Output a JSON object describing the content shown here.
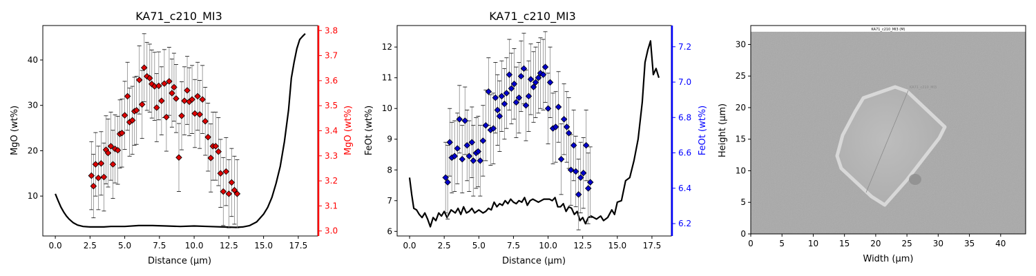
{
  "chart_data": [
    {
      "type": "line+scatter",
      "title": "KA71_c210_MI3",
      "xlabel": "Distance (µm)",
      "ylabel": "MgO (wt%)",
      "ylabel_right": "MgO (wt%)",
      "xlim": [
        -0.9,
        18.9
      ],
      "ylim": [
        1.2,
        47.6
      ],
      "ylim_right": [
        2.98,
        3.82
      ],
      "xticks": [
        "0.0",
        "2.5",
        "5.0",
        "7.5",
        "10.0",
        "12.5",
        "15.0",
        "17.5"
      ],
      "yticks": [
        "10",
        "20",
        "30",
        "40"
      ],
      "yticks_right": [
        "3.0",
        "3.1",
        "3.2",
        "3.3",
        "3.4",
        "3.5",
        "3.6",
        "3.7",
        "3.8"
      ],
      "right_axis_color": "#ff0000",
      "marker_color": "#dd0000",
      "marker": "diamond",
      "line_series": {
        "x": [
          0,
          0.2,
          0.4,
          0.6,
          0.8,
          1.0,
          1.3,
          1.6,
          2.0,
          2.5,
          3.0,
          3.5,
          4.0,
          5.0,
          6.0,
          7.0,
          8.0,
          9.0,
          10.0,
          11.0,
          12.0,
          13.0,
          13.5,
          14.0,
          14.5,
          15.0,
          15.3,
          15.6,
          15.9,
          16.2,
          16.5,
          16.8,
          17.0,
          17.2,
          17.4,
          17.6,
          17.8,
          18.0
        ],
        "y": [
          10.5,
          9,
          7.6,
          6.5,
          5.6,
          4.9,
          4.1,
          3.6,
          3.3,
          3.2,
          3.2,
          3.2,
          3.3,
          3.3,
          3.5,
          3.5,
          3.4,
          3.3,
          3.4,
          3.3,
          3.2,
          3.1,
          3.2,
          3.5,
          4.3,
          6,
          7.5,
          9.7,
          12.8,
          16.5,
          22,
          29,
          36,
          39.5,
          42.5,
          44.5,
          45.2,
          45.8
        ]
      },
      "scatter_series": {
        "x": [
          2.6,
          2.75,
          2.9,
          3.1,
          3.3,
          3.5,
          3.65,
          3.8,
          4.0,
          4.15,
          4.3,
          4.5,
          4.65,
          4.8,
          5.0,
          5.2,
          5.35,
          5.55,
          5.7,
          5.85,
          6.05,
          6.25,
          6.4,
          6.6,
          6.8,
          6.95,
          7.15,
          7.3,
          7.45,
          7.65,
          7.85,
          8.0,
          8.2,
          8.4,
          8.55,
          8.7,
          8.9,
          9.1,
          9.3,
          9.5,
          9.65,
          9.85,
          10.05,
          10.25,
          10.4,
          10.6,
          10.8,
          11.0,
          11.2,
          11.35,
          11.55,
          11.75,
          11.9,
          12.1,
          12.3,
          12.5,
          12.7,
          12.9,
          13.1
        ],
        "y": [
          14.5,
          12.2,
          17,
          14,
          17.2,
          14.2,
          20.2,
          19.5,
          21,
          17,
          20.4,
          20.1,
          23.7,
          23.9,
          27.8,
          32,
          26.3,
          26.7,
          28.7,
          28.9,
          35.6,
          30.2,
          38.3,
          36.4,
          36,
          34.7,
          34.2,
          29.5,
          34.3,
          31,
          34.8,
          27.4,
          35.3,
          32.7,
          34,
          31.5,
          18.5,
          27.7,
          31,
          33.3,
          30.8,
          31.3,
          28.2,
          32,
          28,
          31.3,
          26.5,
          23,
          18.4,
          21,
          21,
          19.8,
          15,
          11,
          15.4,
          10.5,
          13,
          11.3,
          10.5
        ],
        "err": [
          7.5,
          7,
          7,
          7,
          7,
          7.5,
          7.5,
          7.5,
          7.5,
          7.5,
          7.5,
          7.5,
          7.5,
          7.5,
          7.5,
          7.5,
          7.5,
          7.5,
          7.5,
          7.5,
          7.5,
          7.5,
          7.5,
          7.5,
          7.5,
          7.5,
          7.5,
          7.5,
          7.5,
          7.5,
          7.5,
          7.5,
          7.5,
          7.5,
          7.5,
          7.5,
          7.5,
          7.5,
          7.5,
          7.5,
          7.5,
          7.5,
          7.5,
          7.5,
          7.5,
          7.5,
          7.5,
          7.5,
          7.5,
          7.5,
          7.5,
          7.5,
          7.5,
          7.5,
          7.5,
          7.5,
          7.5,
          7.5,
          7.5
        ]
      }
    },
    {
      "type": "line+scatter",
      "title": "KA71_c210_MI3",
      "xlabel": "Distance (µm)",
      "ylabel": "FeOt (wt%)",
      "ylabel_right": "FeOt (wt%)",
      "xlim": [
        -0.9,
        18.9
      ],
      "ylim": [
        5.85,
        12.7
      ],
      "ylim_right": [
        6.13,
        7.32
      ],
      "xticks": [
        "0.0",
        "2.5",
        "5.0",
        "7.5",
        "10.0",
        "12.5",
        "15.0",
        "17.5"
      ],
      "yticks": [
        "6",
        "7",
        "8",
        "9",
        "10",
        "11",
        "12"
      ],
      "yticks_right": [
        "6.2",
        "6.4",
        "6.6",
        "6.8",
        "7.0",
        "7.2"
      ],
      "right_axis_color": "#0000ff",
      "marker_color": "#0000cc",
      "marker": "diamond",
      "line_series": {
        "x": [
          0,
          0.15,
          0.3,
          0.5,
          0.7,
          0.9,
          1.1,
          1.3,
          1.5,
          1.7,
          1.9,
          2.1,
          2.3,
          2.5,
          2.7,
          3.0,
          3.3,
          3.5,
          3.7,
          3.9,
          4.1,
          4.3,
          4.5,
          4.7,
          5.0,
          5.3,
          5.5,
          5.7,
          5.9,
          6.1,
          6.3,
          6.5,
          6.7,
          6.9,
          7.1,
          7.3,
          7.5,
          7.7,
          7.9,
          8.1,
          8.3,
          8.5,
          8.7,
          8.9,
          9.1,
          9.3,
          9.5,
          9.7,
          9.9,
          10.1,
          10.3,
          10.5,
          10.7,
          10.9,
          11.1,
          11.3,
          11.5,
          11.7,
          11.9,
          12.1,
          12.3,
          12.5,
          12.7,
          12.9,
          13.1,
          13.3,
          13.5,
          13.8,
          14.0,
          14.3,
          14.6,
          14.8,
          15.0,
          15.3,
          15.6,
          15.9,
          16.2,
          16.5,
          16.8,
          17.0,
          17.2,
          17.4,
          17.6,
          17.8,
          18.0
        ],
        "y": [
          7.75,
          7.2,
          6.75,
          6.7,
          6.55,
          6.45,
          6.6,
          6.4,
          6.15,
          6.45,
          6.35,
          6.6,
          6.5,
          6.65,
          6.45,
          6.7,
          6.6,
          6.75,
          6.55,
          6.8,
          6.6,
          6.65,
          6.75,
          6.6,
          6.7,
          6.6,
          6.65,
          6.75,
          6.7,
          6.95,
          6.8,
          6.9,
          6.85,
          7.0,
          6.9,
          7.05,
          6.95,
          6.9,
          7.0,
          6.95,
          7.1,
          6.85,
          7.0,
          7.05,
          7.0,
          6.95,
          7.0,
          7.05,
          7.05,
          7.05,
          7.0,
          7.1,
          6.8,
          6.8,
          6.9,
          6.65,
          6.8,
          6.75,
          6.55,
          6.65,
          6.35,
          6.45,
          6.25,
          6.45,
          6.5,
          6.45,
          6.4,
          6.5,
          6.35,
          6.45,
          6.7,
          6.55,
          6.95,
          7.0,
          7.65,
          7.75,
          8.3,
          9.0,
          10.2,
          11.5,
          11.9,
          12.2,
          11.1,
          11.3,
          11.0
        ]
      },
      "scatter_series": {
        "x": [
          2.6,
          2.75,
          2.9,
          3.05,
          3.25,
          3.45,
          3.6,
          3.8,
          4.0,
          4.15,
          4.3,
          4.5,
          4.6,
          4.8,
          4.95,
          5.1,
          5.3,
          5.5,
          5.7,
          5.85,
          6.05,
          6.2,
          6.35,
          6.5,
          6.65,
          6.85,
          7.0,
          7.2,
          7.35,
          7.55,
          7.7,
          7.9,
          8.05,
          8.25,
          8.4,
          8.6,
          8.75,
          8.95,
          9.1,
          9.3,
          9.45,
          9.65,
          9.8,
          10.0,
          10.15,
          10.35,
          10.55,
          10.75,
          10.95,
          11.15,
          11.35,
          11.5,
          11.65,
          11.85,
          12.0,
          12.2,
          12.35,
          12.55,
          12.75,
          12.9,
          13.05
        ],
        "y": [
          7.75,
          7.6,
          8.9,
          8.4,
          8.45,
          8.7,
          9.65,
          8.35,
          9.6,
          8.8,
          8.45,
          8.9,
          8.3,
          8.55,
          8.6,
          8.3,
          8.95,
          9.45,
          10.55,
          9.3,
          9.35,
          10.35,
          9.95,
          9.75,
          10.4,
          10.15,
          10.5,
          11.1,
          10.65,
          10.8,
          10.2,
          10.35,
          11.05,
          11.3,
          10.1,
          10.4,
          10.95,
          10.7,
          10.85,
          11.0,
          11.15,
          11.1,
          11.35,
          10.0,
          10.85,
          9.35,
          9.4,
          10.05,
          8.35,
          9.65,
          9.4,
          9.2,
          8.0,
          8.8,
          7.95,
          7.2,
          7.75,
          7.9,
          8.8,
          7.4,
          7.6
        ],
        "err": [
          1.15,
          1.2,
          1.1,
          1.15,
          1.15,
          1.15,
          1.1,
          1.1,
          1.1,
          1.15,
          1.15,
          1.15,
          1.15,
          1.15,
          1.15,
          1.15,
          1.15,
          1.15,
          1.1,
          1.15,
          1.15,
          1.15,
          1.15,
          1.15,
          1.15,
          1.15,
          1.15,
          1.15,
          1.15,
          1.15,
          1.15,
          1.15,
          1.15,
          1.15,
          1.15,
          1.15,
          1.15,
          1.15,
          1.15,
          1.15,
          1.15,
          1.15,
          1.15,
          1.15,
          1.15,
          1.15,
          1.15,
          1.15,
          1.15,
          1.15,
          1.15,
          1.15,
          1.15,
          1.15,
          1.15,
          1.15,
          1.15,
          1.15,
          1.15,
          1.15,
          1.15
        ]
      }
    },
    {
      "type": "image",
      "title": "KA71_c210_MI3 (M)",
      "xlabel": "Width (µm)",
      "ylabel": "Height (µm)",
      "xlim": [
        0,
        44
      ],
      "ylim": [
        0,
        33
      ],
      "xticks": [
        "0",
        "5",
        "10",
        "15",
        "20",
        "25",
        "30",
        "35",
        "40"
      ],
      "yticks": [
        "0",
        "5",
        "10",
        "15",
        "20",
        "25",
        "30"
      ],
      "image_caption": "KA71_c210_MI3 (M)",
      "profile_label": "KA71_c210_MI3",
      "image_background": "#a9a9a9"
    }
  ]
}
